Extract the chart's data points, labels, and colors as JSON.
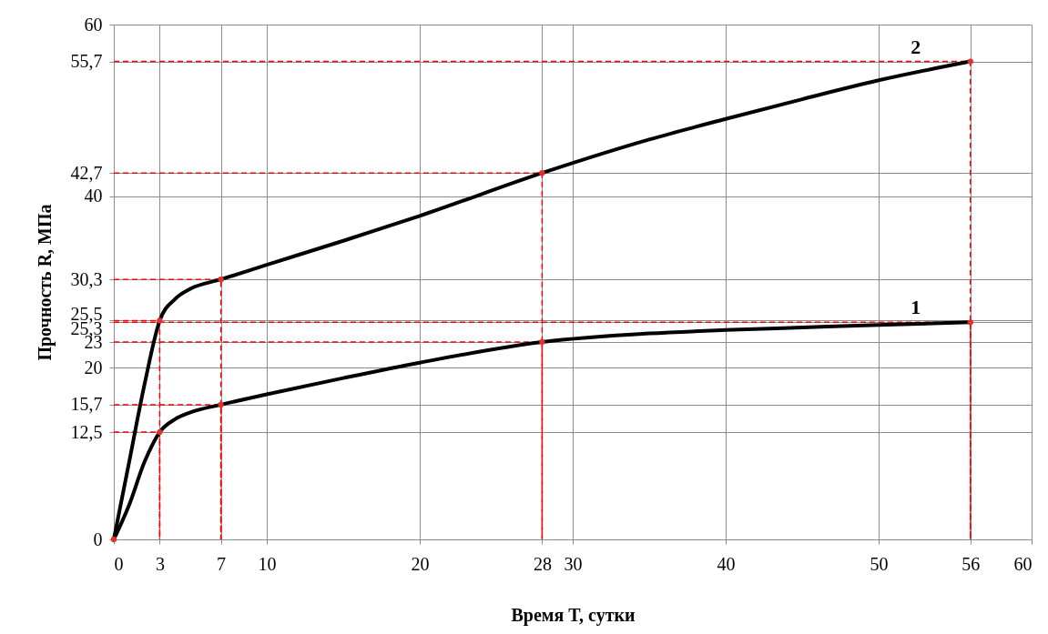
{
  "chart_data": {
    "type": "line",
    "xlabel": "Время T, сутки",
    "ylabel": "Прочность R, МПа",
    "xlim": [
      0,
      60
    ],
    "ylim": [
      0,
      60
    ],
    "xticks": [
      0,
      3,
      7,
      10,
      20,
      28,
      30,
      40,
      50,
      56,
      60
    ],
    "yticks": [
      0,
      {
        "value": 12.5,
        "label": "12,5"
      },
      {
        "value": 15.7,
        "label": "15,7"
      },
      20,
      23,
      {
        "value": 25.3,
        "label": "25,3"
      },
      {
        "value": 25.5,
        "label": "25,5"
      },
      {
        "value": 30.3,
        "label": "30,3"
      },
      40,
      {
        "value": 42.7,
        "label": "42,7"
      },
      {
        "value": 55.7,
        "label": "55,7"
      },
      60
    ],
    "grid": true,
    "series": [
      {
        "color": "#ff0000",
        "line_style": "dashed",
        "x": [
          0,
          3,
          3
        ],
        "values": [
          12.5,
          12.5,
          0
        ]
      },
      {
        "color": "#ff0000",
        "line_style": "dashed",
        "x": [
          0,
          7,
          7
        ],
        "values": [
          15.7,
          15.7,
          0
        ]
      },
      {
        "color": "#ff0000",
        "line_style": "dashed",
        "x": [
          0,
          28,
          28
        ],
        "values": [
          23,
          23,
          0
        ]
      },
      {
        "color": "#ff0000",
        "line_style": "dashed",
        "x": [
          0,
          56,
          56
        ],
        "values": [
          25.3,
          25.3,
          0
        ]
      },
      {
        "color": "#ff0000",
        "line_style": "dashed",
        "x": [
          0,
          3,
          3
        ],
        "values": [
          25.5,
          25.5,
          0
        ]
      },
      {
        "color": "#ff0000",
        "line_style": "dashed",
        "x": [
          0,
          7,
          7
        ],
        "values": [
          30.3,
          30.3,
          0
        ]
      },
      {
        "color": "#ff0000",
        "line_style": "dashed",
        "x": [
          0,
          28,
          28
        ],
        "values": [
          42.7,
          42.7,
          0
        ]
      },
      {
        "color": "#ff0000",
        "line_style": "dashed",
        "x": [
          0,
          56,
          56
        ],
        "values": [
          55.7,
          55.7,
          0
        ]
      },
      {
        "name": "1",
        "color": "#000000",
        "line_style": "solid",
        "x": [
          0,
          1,
          2,
          3,
          4,
          5,
          7,
          10,
          15,
          20,
          28,
          35,
          40,
          45,
          50,
          56
        ],
        "values": [
          0,
          4,
          9,
          12.5,
          14,
          14.8,
          15.7,
          16.9,
          18.8,
          20.6,
          23,
          24,
          24.4,
          24.7,
          25,
          25.3
        ]
      },
      {
        "name": "2",
        "color": "#000000",
        "line_style": "solid",
        "x": [
          0,
          1,
          2,
          3,
          4,
          5,
          7,
          10,
          15,
          20,
          28,
          35,
          40,
          45,
          50,
          56
        ],
        "values": [
          0,
          9,
          18,
          25.5,
          28,
          29.2,
          30.3,
          32,
          34.8,
          37.7,
          42.7,
          46.6,
          49,
          51.3,
          53.5,
          55.7
        ]
      },
      {
        "type": "scatter",
        "color": "#e03030",
        "marker": "circle",
        "x": [
          0,
          3,
          7,
          28,
          56,
          3,
          7,
          28,
          56
        ],
        "values": [
          0,
          12.5,
          15.7,
          23,
          25.3,
          25.5,
          30.3,
          42.7,
          55.7
        ]
      }
    ]
  }
}
